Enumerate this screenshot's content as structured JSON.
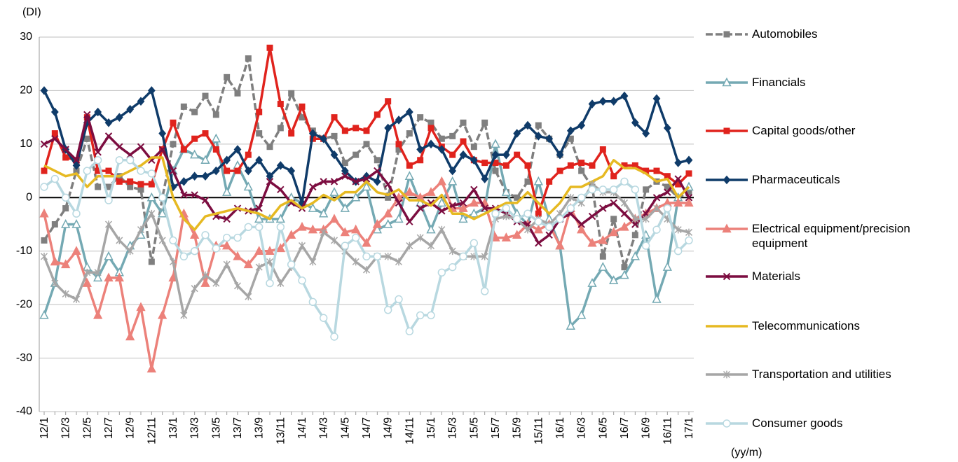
{
  "chart_data": {
    "type": "line",
    "y_label": "(DI)",
    "x_label": "(yy/m)",
    "categories": [
      "12/1",
      null,
      "12/3",
      null,
      "12/5",
      null,
      "12/7",
      null,
      "12/9",
      null,
      "12/11",
      null,
      "13/1",
      null,
      "13/3",
      null,
      "13/5",
      null,
      "13/7",
      null,
      "13/9",
      null,
      "13/11",
      null,
      "14/1",
      null,
      "14/3",
      null,
      "14/5",
      null,
      "14/7",
      null,
      "14/9",
      null,
      "14/11",
      null,
      "15/1",
      null,
      "15/3",
      null,
      "15/5",
      null,
      "15/7",
      null,
      "15/9",
      null,
      "15/11",
      null,
      "16/1",
      null,
      "16/3",
      null,
      "16/5",
      null,
      "16/7",
      null,
      "16/9",
      null,
      "16/11",
      null,
      "17/1"
    ],
    "ylim": [
      -40,
      30
    ],
    "yticks": [
      -40,
      -30,
      -20,
      -10,
      0,
      10,
      20,
      30
    ],
    "grid": true,
    "series": [
      {
        "name": "Automobiles",
        "color": "#7f7f7f",
        "marker": "square",
        "dash": true,
        "values": [
          -8,
          -5,
          -2,
          5,
          11,
          2,
          2,
          4,
          2,
          1.5,
          -12,
          0,
          10,
          17,
          16,
          19,
          15.5,
          22.5,
          19.5,
          26,
          12,
          9.5,
          13,
          19.5,
          15,
          12.5,
          11,
          11.5,
          6.5,
          8,
          10,
          7,
          0,
          9,
          12,
          15,
          14,
          11,
          11.5,
          14,
          9.5,
          14,
          5,
          1,
          0,
          3,
          13.5,
          11,
          8,
          11,
          5,
          2,
          -11,
          -4,
          -13,
          -7,
          1.5,
          3,
          2,
          0,
          1
        ]
      },
      {
        "name": "Financials",
        "color": "#74a9b3",
        "marker": "triangle-open",
        "values": [
          -22,
          -16,
          -5,
          -5,
          -13,
          -15,
          -11,
          -14,
          -9,
          -7,
          0,
          -3,
          5,
          9,
          8,
          7,
          11,
          1,
          6,
          2,
          -4,
          -4,
          -4,
          0,
          -1,
          -2,
          -3,
          1,
          -2,
          0,
          2,
          -6,
          -5,
          -4,
          4,
          -1,
          -6,
          -1,
          3,
          -4,
          -3,
          -2,
          10,
          1,
          -3,
          -5,
          3,
          -4,
          -9,
          -24,
          -22,
          -16,
          -13,
          -15.5,
          -14.5,
          -11,
          -7,
          -19,
          -13,
          0,
          2
        ]
      },
      {
        "name": "Capital goods/other",
        "color": "#e0231d",
        "marker": "square",
        "values": [
          5,
          12,
          7.5,
          7,
          15,
          5,
          5,
          3,
          3,
          2.5,
          2.5,
          9,
          14,
          9,
          11,
          12,
          9,
          5,
          5,
          8,
          16,
          28,
          17.5,
          12,
          17,
          11,
          11,
          15,
          12.5,
          13,
          12.5,
          15.5,
          18,
          10,
          6,
          7,
          13,
          9.5,
          8,
          10.5,
          7,
          6.5,
          6.5,
          6,
          8,
          6,
          -3,
          3,
          5,
          6,
          6.5,
          6,
          9,
          4,
          6,
          6,
          5,
          5,
          4,
          2.5,
          4.5
        ]
      },
      {
        "name": "Pharmaceuticals",
        "color": "#0f3b69",
        "marker": "diamond",
        "values": [
          20,
          16,
          9,
          6,
          14,
          16,
          14,
          15,
          16.5,
          18,
          20,
          12,
          2,
          3,
          4,
          4,
          5,
          7,
          9,
          5,
          7,
          4,
          6,
          5,
          -1,
          12,
          11,
          8,
          5,
          3,
          4,
          3,
          13,
          14.5,
          16,
          9,
          10,
          9,
          5,
          8,
          7,
          3.5,
          8,
          8,
          12,
          13.5,
          11.5,
          11,
          8,
          12.5,
          13.5,
          17.5,
          18,
          18,
          19,
          14,
          12,
          18.5,
          13,
          6.5,
          7
        ]
      },
      {
        "name": "Electrical equipment/precision equipment",
        "color": "#ec817a",
        "marker": "triangle",
        "values": [
          -3,
          -12,
          -12.5,
          -10,
          -16,
          -22,
          -15,
          -15,
          -26,
          -20.5,
          -32,
          -22,
          -15,
          -3,
          -7,
          -16,
          -9,
          -9,
          -11,
          -12.5,
          -10,
          -10,
          -9.5,
          -7,
          -5.5,
          -6,
          -6,
          -4,
          -6.5,
          -6,
          -8.5,
          -5,
          -3,
          0,
          1,
          0,
          1,
          3,
          -2,
          -2,
          -1,
          -1,
          -7.5,
          -7.5,
          -7,
          -5,
          -6,
          -5,
          -9,
          -2,
          -6,
          -8.5,
          -8,
          -6.5,
          -5.5,
          -4,
          -3,
          -2,
          -1,
          -1,
          -1
        ]
      },
      {
        "name": "Materials",
        "color": "#7c0d40",
        "marker": "x",
        "values": [
          10,
          11,
          9,
          7,
          15.5,
          8.5,
          11.5,
          9.5,
          8,
          9.5,
          7,
          9,
          5,
          0.5,
          0.5,
          -0.5,
          -3.5,
          -4,
          -2,
          -2.5,
          -2,
          3,
          1.5,
          -1,
          -2,
          2,
          3,
          3,
          4,
          3,
          3.5,
          5,
          2.5,
          -1,
          -4.5,
          -2,
          -1,
          -2.5,
          -1.5,
          -1,
          1.5,
          -2,
          -2,
          -3,
          -4.5,
          -5,
          -8.5,
          -7,
          -4,
          -3,
          -5,
          -3.5,
          -2,
          -1,
          -3,
          -5,
          -3,
          0,
          1,
          3.5,
          0
        ]
      },
      {
        "name": "Telecommunications",
        "color": "#e6b922",
        "marker": "none",
        "values": [
          6,
          5,
          4,
          4.5,
          2,
          4,
          4,
          4,
          5,
          6,
          7.5,
          7.5,
          0,
          -4,
          -6,
          -3.5,
          -3,
          -2.5,
          -2,
          -2.5,
          -3,
          -4,
          -1.5,
          -0.5,
          -2,
          -1,
          0.5,
          -0.5,
          1,
          1,
          3,
          1,
          0.5,
          1.5,
          -0.5,
          -0.5,
          -1.5,
          0.5,
          -3,
          -3,
          -4,
          -3,
          -2,
          -1,
          -1,
          1,
          -1,
          -3,
          -1,
          2,
          2,
          3,
          4,
          7,
          5.5,
          5.5,
          4.5,
          3,
          3.5,
          0,
          2
        ]
      },
      {
        "name": "Transportation and utilities",
        "color": "#a6a6a6",
        "marker": "star",
        "values": [
          -11,
          -16,
          -18,
          -19,
          -14,
          -14,
          -5,
          -8,
          -10,
          -6,
          -3,
          -8,
          -12,
          -22,
          -17,
          -14.5,
          -16,
          -12.5,
          -16.5,
          -18.5,
          -13,
          -12,
          -16,
          -13,
          -9,
          -12,
          -6.5,
          -8,
          -10,
          -12,
          -13.5,
          -11,
          -11,
          -12,
          -9,
          -7.5,
          -9,
          -6,
          -10,
          -11,
          -11,
          -11,
          -4,
          -3.5,
          -4,
          -6,
          -4,
          -5,
          -3,
          0,
          -1,
          2.5,
          1,
          1,
          -1,
          -4,
          -4,
          -2,
          -4,
          -6,
          -6.5
        ]
      },
      {
        "name": "Consumer goods",
        "color": "#b8d8e0",
        "marker": "circle",
        "values": [
          2,
          3.5,
          0,
          -3,
          5,
          7,
          -0.5,
          7,
          7,
          5,
          4.5,
          0,
          -8,
          -11,
          -10,
          -7,
          -9.5,
          -7.5,
          -7.5,
          -5.5,
          -5.5,
          -16,
          -5.5,
          -12.5,
          -15.5,
          -19.5,
          -22.5,
          -26,
          -9,
          -7.5,
          -11,
          -11,
          -21,
          -19,
          -25,
          -22,
          -22,
          -14,
          -13,
          -11,
          -8.5,
          -17.5,
          -3,
          -2,
          -4,
          -3,
          -4.5,
          -5.5,
          -4,
          -2,
          0,
          1.5,
          1.5,
          1.5,
          3,
          1.5,
          -9,
          -6,
          -2,
          -10,
          -8
        ]
      }
    ]
  }
}
